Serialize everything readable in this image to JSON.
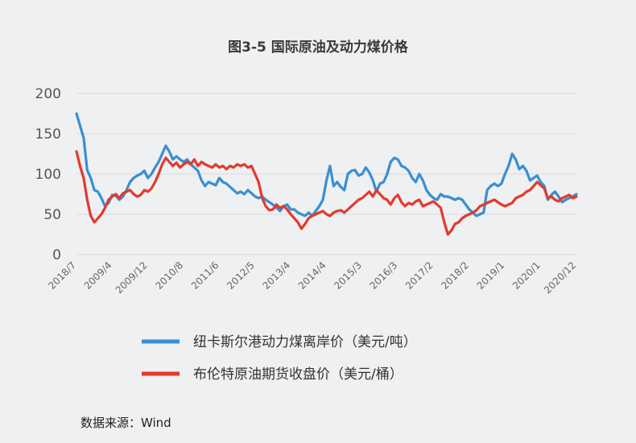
{
  "chart_data": {
    "type": "line",
    "title": "图3-5  国际原油及动力煤价格",
    "source": "数据来源：Wind",
    "ylim": [
      0,
      200
    ],
    "yticks": [
      0,
      50,
      100,
      150,
      200
    ],
    "x_tick_labels": [
      "2018/7",
      "2009/4",
      "2009/12",
      "2010/8",
      "2011/6",
      "2012/5",
      "2013/4",
      "2014/4",
      "2015/3",
      "2016/3",
      "2017/2",
      "2018/2",
      "2019/1",
      "2020/1",
      "2020/12"
    ],
    "x_range": [
      0,
      140
    ],
    "grid": true,
    "legend_position": "bottom",
    "series": [
      {
        "name": "纽卡斯尔港动力煤离岸价（美元/吨）",
        "color": "#3a8fd0",
        "x": [
          0,
          1,
          2,
          3,
          4,
          5,
          6,
          7,
          8,
          9,
          10,
          11,
          12,
          13,
          14,
          15,
          16,
          17,
          18,
          19,
          20,
          21,
          22,
          23,
          24,
          25,
          26,
          27,
          28,
          29,
          30,
          31,
          32,
          33,
          34,
          35,
          36,
          37,
          38,
          39,
          40,
          41,
          42,
          43,
          44,
          45,
          46,
          47,
          48,
          49,
          50,
          51,
          52,
          53,
          54,
          55,
          56,
          57,
          58,
          59,
          60,
          61,
          62,
          63,
          64,
          65,
          66,
          67,
          68,
          69,
          70,
          71,
          72,
          73,
          74,
          75,
          76,
          77,
          78,
          79,
          80,
          81,
          82,
          83,
          84,
          85,
          86,
          87,
          88,
          89,
          90,
          91,
          92,
          93,
          94,
          95,
          96,
          97,
          98,
          99,
          100,
          101,
          102,
          103,
          104,
          105,
          106,
          107,
          108,
          109,
          110,
          111,
          112,
          113,
          114,
          115,
          116,
          117,
          118,
          119,
          120,
          121,
          122,
          123,
          124,
          125,
          126,
          127,
          128,
          129,
          130,
          131,
          132,
          133,
          134,
          135,
          136,
          137,
          138,
          139,
          140
        ],
        "y": [
          175,
          160,
          145,
          105,
          95,
          80,
          78,
          70,
          60,
          64,
          74,
          73,
          68,
          72,
          80,
          90,
          95,
          98,
          100,
          104,
          95,
          100,
          108,
          115,
          125,
          135,
          128,
          118,
          122,
          118,
          115,
          118,
          112,
          108,
          104,
          92,
          85,
          90,
          88,
          86,
          95,
          90,
          88,
          84,
          80,
          76,
          78,
          75,
          80,
          76,
          72,
          70,
          72,
          68,
          65,
          62,
          58,
          54,
          60,
          62,
          56,
          56,
          52,
          50,
          48,
          52,
          48,
          54,
          60,
          68,
          92,
          110,
          85,
          90,
          84,
          80,
          100,
          104,
          105,
          98,
          100,
          108,
          102,
          92,
          78,
          88,
          90,
          100,
          115,
          120,
          118,
          110,
          108,
          104,
          95,
          90,
          100,
          92,
          80,
          74,
          70,
          68,
          75,
          72,
          72,
          70,
          68,
          70,
          68,
          62,
          56,
          52,
          48,
          50,
          52,
          80,
          85,
          88,
          85,
          88,
          100,
          110,
          125,
          118,
          106,
          110,
          104,
          92,
          95,
          98,
          90,
          85,
          68,
          74,
          78,
          72,
          65,
          68,
          70,
          72,
          75
        ],
        "y_note": "approximate readings"
      },
      {
        "name": "布伦特原油期货收盘价（美元/桶）",
        "color": "#e23a2e",
        "x": [
          0,
          1,
          2,
          3,
          4,
          5,
          6,
          7,
          8,
          9,
          10,
          11,
          12,
          13,
          14,
          15,
          16,
          17,
          18,
          19,
          20,
          21,
          22,
          23,
          24,
          25,
          26,
          27,
          28,
          29,
          30,
          31,
          32,
          33,
          34,
          35,
          36,
          37,
          38,
          39,
          40,
          41,
          42,
          43,
          44,
          45,
          46,
          47,
          48,
          49,
          50,
          51,
          52,
          53,
          54,
          55,
          56,
          57,
          58,
          59,
          60,
          61,
          62,
          63,
          64,
          65,
          66,
          67,
          68,
          69,
          70,
          71,
          72,
          73,
          74,
          75,
          76,
          77,
          78,
          79,
          80,
          81,
          82,
          83,
          84,
          85,
          86,
          87,
          88,
          89,
          90,
          91,
          92,
          93,
          94,
          95,
          96,
          97,
          98,
          99,
          100,
          101,
          102,
          103,
          104,
          105,
          106,
          107,
          108,
          109,
          110,
          111,
          112,
          113,
          114,
          115,
          116,
          117,
          118,
          119,
          120,
          121,
          122,
          123,
          124,
          125,
          126,
          127,
          128,
          129,
          130,
          131,
          132,
          133,
          134,
          135,
          136,
          137,
          138,
          139,
          140
        ],
        "y": [
          128,
          110,
          95,
          68,
          48,
          40,
          45,
          50,
          58,
          68,
          72,
          75,
          70,
          76,
          78,
          80,
          75,
          72,
          74,
          80,
          78,
          82,
          90,
          100,
          112,
          120,
          115,
          110,
          114,
          108,
          112,
          115,
          112,
          118,
          110,
          115,
          112,
          110,
          108,
          112,
          108,
          110,
          106,
          110,
          108,
          112,
          110,
          112,
          108,
          110,
          100,
          90,
          70,
          60,
          55,
          56,
          62,
          58,
          60,
          56,
          50,
          45,
          40,
          32,
          38,
          45,
          48,
          50,
          52,
          54,
          50,
          48,
          52,
          54,
          55,
          52,
          56,
          60,
          64,
          68,
          70,
          74,
          78,
          72,
          80,
          75,
          70,
          68,
          62,
          70,
          74,
          65,
          60,
          64,
          62,
          66,
          68,
          60,
          62,
          64,
          66,
          62,
          58,
          40,
          25,
          30,
          38,
          40,
          45,
          48,
          50,
          52,
          55,
          60,
          62,
          64,
          66,
          68,
          65,
          62,
          60,
          62,
          64,
          70,
          72,
          74,
          78,
          80,
          85,
          90,
          86,
          82,
          70,
          72,
          68,
          66,
          70,
          72,
          74,
          70,
          72
        ],
        "y_note": "approximate readings"
      }
    ]
  }
}
